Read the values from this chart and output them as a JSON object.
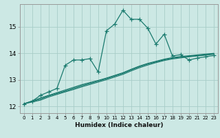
{
  "xlabel": "Humidex (Indice chaleur)",
  "background_color": "#cce8e4",
  "grid_color": "#a8cdc8",
  "line_color": "#1a7a6e",
  "xmin": -0.5,
  "xmax": 23.5,
  "ymin": 11.75,
  "ymax": 15.85,
  "yticks": [
    12,
    13,
    14,
    15
  ],
  "xticks": [
    0,
    1,
    2,
    3,
    4,
    5,
    6,
    7,
    8,
    9,
    10,
    11,
    12,
    13,
    14,
    15,
    16,
    17,
    18,
    19,
    20,
    21,
    22,
    23
  ],
  "line1_x": [
    0,
    1,
    2,
    3,
    4,
    5,
    6,
    7,
    8,
    9,
    10,
    11,
    12,
    13,
    14,
    15,
    16,
    17,
    18,
    19,
    20,
    21,
    22,
    23
  ],
  "line1_y": [
    12.1,
    12.2,
    12.42,
    12.55,
    12.68,
    13.55,
    13.75,
    13.75,
    13.8,
    13.3,
    14.85,
    15.1,
    15.62,
    15.28,
    15.28,
    14.95,
    14.35,
    14.72,
    13.9,
    13.95,
    13.75,
    13.82,
    13.87,
    13.92
  ],
  "line2_x": [
    0,
    2,
    3,
    5,
    6,
    7,
    8,
    9,
    10,
    11,
    12,
    13,
    14,
    15,
    16,
    17,
    18,
    19,
    20,
    21,
    22,
    23
  ],
  "line2_y": [
    12.1,
    12.32,
    12.42,
    12.62,
    12.72,
    12.82,
    12.9,
    12.98,
    13.07,
    13.17,
    13.27,
    13.4,
    13.52,
    13.62,
    13.7,
    13.78,
    13.84,
    13.88,
    13.91,
    13.94,
    13.97,
    14.0
  ],
  "line3_x": [
    0,
    2,
    3,
    5,
    6,
    7,
    8,
    9,
    10,
    11,
    12,
    13,
    14,
    15,
    16,
    17,
    18,
    19,
    20,
    21,
    22,
    23
  ],
  "line3_y": [
    12.1,
    12.28,
    12.4,
    12.58,
    12.68,
    12.78,
    12.87,
    12.96,
    13.05,
    13.15,
    13.25,
    13.38,
    13.5,
    13.6,
    13.68,
    13.76,
    13.82,
    13.86,
    13.89,
    13.92,
    13.95,
    13.98
  ],
  "line4_x": [
    0,
    2,
    3,
    5,
    6,
    7,
    8,
    9,
    10,
    11,
    12,
    13,
    14,
    15,
    16,
    17,
    18,
    19,
    20,
    21,
    22,
    23
  ],
  "line4_y": [
    12.1,
    12.24,
    12.36,
    12.55,
    12.64,
    12.74,
    12.83,
    12.92,
    13.01,
    13.11,
    13.21,
    13.34,
    13.46,
    13.56,
    13.65,
    13.73,
    13.79,
    13.83,
    13.87,
    13.9,
    13.93,
    13.97
  ]
}
